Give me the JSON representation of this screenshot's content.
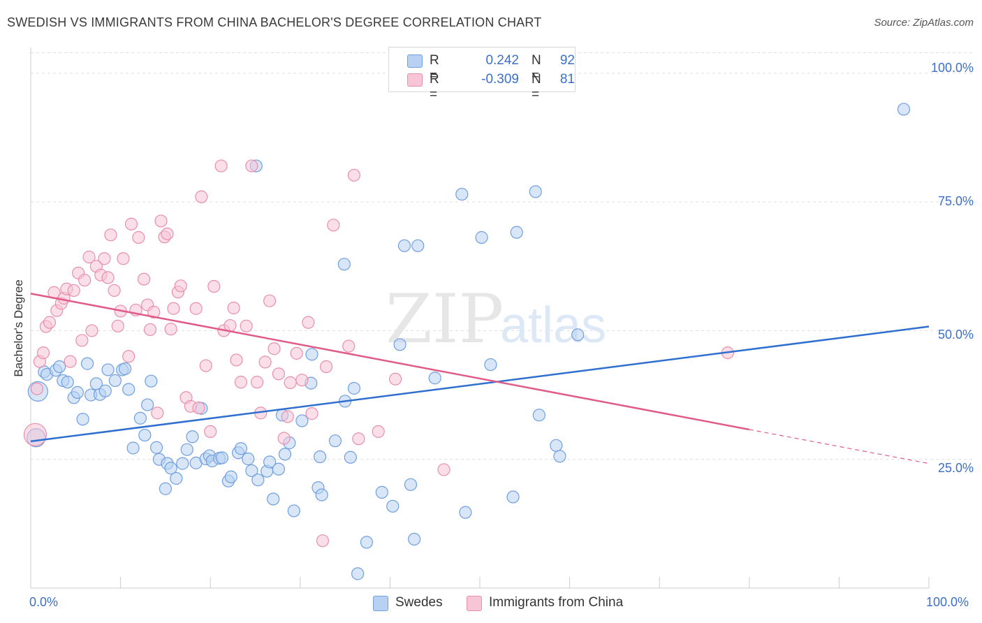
{
  "chart_data": {
    "type": "scatter",
    "title": "SWEDISH VS IMMIGRANTS FROM CHINA BACHELOR'S DEGREE CORRELATION CHART",
    "source": "Source: ZipAtlas.com",
    "ylabel": "Bachelor's Degree",
    "xlabel": "",
    "xlim": [
      0,
      100
    ],
    "ylim": [
      0,
      105
    ],
    "x_tick_labels": [
      "0.0%",
      "100.0%"
    ],
    "y_tick_labels": [
      "25.0%",
      "50.0%",
      "75.0%",
      "100.0%"
    ],
    "y_tick_values": [
      25,
      50,
      75,
      100
    ],
    "watermark": {
      "zip": "ZIP",
      "atlas": "atlas"
    },
    "legend": {
      "rows": [
        {
          "r_label": "R =",
          "r_value": "0.242",
          "n_label": "N =",
          "n_value": "92"
        },
        {
          "r_label": "R =",
          "r_value": "-0.309",
          "n_label": "N =",
          "n_value": "81"
        }
      ]
    },
    "series": [
      {
        "name": "Swedes",
        "color": "#6f9fe0",
        "fill": "#b8d1f3",
        "line_color": "#2f6fd0",
        "trend": {
          "x0": 0,
          "y0": 28.5,
          "x1": 100,
          "y1": 50.8
        },
        "points": [
          [
            0.8,
            38.2
          ],
          [
            0.6,
            29.2
          ],
          [
            1.5,
            42.0
          ],
          [
            1.8,
            41.5
          ],
          [
            2.8,
            42.3
          ],
          [
            3.2,
            43.0
          ],
          [
            3.6,
            40.3
          ],
          [
            4.1,
            40.0
          ],
          [
            4.8,
            37.0
          ],
          [
            5.2,
            38.0
          ],
          [
            5.8,
            32.8
          ],
          [
            6.3,
            43.6
          ],
          [
            6.7,
            37.5
          ],
          [
            7.7,
            37.6
          ],
          [
            7.3,
            39.7
          ],
          [
            8.3,
            38.3
          ],
          [
            8.6,
            42.4
          ],
          [
            9.4,
            40.3
          ],
          [
            10.2,
            42.4
          ],
          [
            10.5,
            42.6
          ],
          [
            10.9,
            38.6
          ],
          [
            11.4,
            27.2
          ],
          [
            12.2,
            33.0
          ],
          [
            12.7,
            29.7
          ],
          [
            13.0,
            35.6
          ],
          [
            13.4,
            40.2
          ],
          [
            14.0,
            27.3
          ],
          [
            14.3,
            25.0
          ],
          [
            15.2,
            24.2
          ],
          [
            15.0,
            19.3
          ],
          [
            15.6,
            23.3
          ],
          [
            16.2,
            21.3
          ],
          [
            16.9,
            24.2
          ],
          [
            17.4,
            26.9
          ],
          [
            18.0,
            29.4
          ],
          [
            18.4,
            24.3
          ],
          [
            19.0,
            34.9
          ],
          [
            19.5,
            25.1
          ],
          [
            19.9,
            25.7
          ],
          [
            20.2,
            24.7
          ],
          [
            21.0,
            25.2
          ],
          [
            21.3,
            25.3
          ],
          [
            22.0,
            20.8
          ],
          [
            22.3,
            21.6
          ],
          [
            23.1,
            26.3
          ],
          [
            23.4,
            27.1
          ],
          [
            24.2,
            25.1
          ],
          [
            24.6,
            22.8
          ],
          [
            25.3,
            21.0
          ],
          [
            25.1,
            82.0
          ],
          [
            26.3,
            22.7
          ],
          [
            26.6,
            24.5
          ],
          [
            27.0,
            17.3
          ],
          [
            27.6,
            23.1
          ],
          [
            28.0,
            33.6
          ],
          [
            28.3,
            26.0
          ],
          [
            28.8,
            28.2
          ],
          [
            29.3,
            15.0
          ],
          [
            30.2,
            32.5
          ],
          [
            31.2,
            39.8
          ],
          [
            31.3,
            45.4
          ],
          [
            32.2,
            25.5
          ],
          [
            32.0,
            19.5
          ],
          [
            32.4,
            18.1
          ],
          [
            33.9,
            28.6
          ],
          [
            35.0,
            36.3
          ],
          [
            34.9,
            62.9
          ],
          [
            35.6,
            25.4
          ],
          [
            36.0,
            38.8
          ],
          [
            36.4,
            2.8
          ],
          [
            37.4,
            8.9
          ],
          [
            39.1,
            18.6
          ],
          [
            40.3,
            15.9
          ],
          [
            41.1,
            47.3
          ],
          [
            41.6,
            66.5
          ],
          [
            42.3,
            20.1
          ],
          [
            42.7,
            9.5
          ],
          [
            43.1,
            66.5
          ],
          [
            45.0,
            40.8
          ],
          [
            48.0,
            76.5
          ],
          [
            48.4,
            14.7
          ],
          [
            50.2,
            68.1
          ],
          [
            51.2,
            43.4
          ],
          [
            53.7,
            17.7
          ],
          [
            54.1,
            69.1
          ],
          [
            56.2,
            77.0
          ],
          [
            56.6,
            33.6
          ],
          [
            58.5,
            27.7
          ],
          [
            58.9,
            25.6
          ],
          [
            60.9,
            49.2
          ],
          [
            97.2,
            93.0
          ]
        ]
      },
      {
        "name": "Immigrants from China",
        "color": "#e88fab",
        "fill": "#f7c5d5",
        "line_color": "#e05a8a",
        "trend": {
          "x0": 0,
          "y0": 57.2,
          "x1": 80,
          "y1": 30.8,
          "dash_x1": 100,
          "dash_y1": 24.2
        },
        "points": [
          [
            0.5,
            29.8
          ],
          [
            0.7,
            38.7
          ],
          [
            1.0,
            44.0
          ],
          [
            1.4,
            45.7
          ],
          [
            1.7,
            50.8
          ],
          [
            2.1,
            51.6
          ],
          [
            2.6,
            57.4
          ],
          [
            2.9,
            53.9
          ],
          [
            3.4,
            55.3
          ],
          [
            3.7,
            56.3
          ],
          [
            4.0,
            58.1
          ],
          [
            4.4,
            44.0
          ],
          [
            4.8,
            57.8
          ],
          [
            5.3,
            61.2
          ],
          [
            5.7,
            48.1
          ],
          [
            6.0,
            59.8
          ],
          [
            6.5,
            64.3
          ],
          [
            6.8,
            50.0
          ],
          [
            7.3,
            62.5
          ],
          [
            7.8,
            60.8
          ],
          [
            8.2,
            64.0
          ],
          [
            8.6,
            60.3
          ],
          [
            8.9,
            68.6
          ],
          [
            9.3,
            57.8
          ],
          [
            9.7,
            50.9
          ],
          [
            10.0,
            53.8
          ],
          [
            10.3,
            64.0
          ],
          [
            10.9,
            45.0
          ],
          [
            11.2,
            70.7
          ],
          [
            11.7,
            54.0
          ],
          [
            12.0,
            68.1
          ],
          [
            12.6,
            60.0
          ],
          [
            13.0,
            55.0
          ],
          [
            13.3,
            50.2
          ],
          [
            13.7,
            53.6
          ],
          [
            14.1,
            34.0
          ],
          [
            14.5,
            71.3
          ],
          [
            14.9,
            68.2
          ],
          [
            15.2,
            68.8
          ],
          [
            15.6,
            50.3
          ],
          [
            15.9,
            54.3
          ],
          [
            16.4,
            57.5
          ],
          [
            16.7,
            58.7
          ],
          [
            17.3,
            37.0
          ],
          [
            17.8,
            35.3
          ],
          [
            18.4,
            54.3
          ],
          [
            18.7,
            35.0
          ],
          [
            19.0,
            76.0
          ],
          [
            19.5,
            43.2
          ],
          [
            20.0,
            30.4
          ],
          [
            20.4,
            58.6
          ],
          [
            21.2,
            82.0
          ],
          [
            21.5,
            50.0
          ],
          [
            22.2,
            51.0
          ],
          [
            22.6,
            54.4
          ],
          [
            22.9,
            44.3
          ],
          [
            23.4,
            40.0
          ],
          [
            24.0,
            50.9
          ],
          [
            24.6,
            82.0
          ],
          [
            25.2,
            40.0
          ],
          [
            25.6,
            34.0
          ],
          [
            26.1,
            43.9
          ],
          [
            26.6,
            55.8
          ],
          [
            27.1,
            46.5
          ],
          [
            27.6,
            41.6
          ],
          [
            28.2,
            29.1
          ],
          [
            28.6,
            33.3
          ],
          [
            28.9,
            39.9
          ],
          [
            29.6,
            45.6
          ],
          [
            30.2,
            40.4
          ],
          [
            30.9,
            51.6
          ],
          [
            31.3,
            33.9
          ],
          [
            32.5,
            9.2
          ],
          [
            32.9,
            43.0
          ],
          [
            33.7,
            70.5
          ],
          [
            35.4,
            47.0
          ],
          [
            36.0,
            80.2
          ],
          [
            36.5,
            29.0
          ],
          [
            38.7,
            30.4
          ],
          [
            40.6,
            40.6
          ],
          [
            46.0,
            23.0
          ],
          [
            77.6,
            45.7
          ]
        ]
      }
    ]
  }
}
